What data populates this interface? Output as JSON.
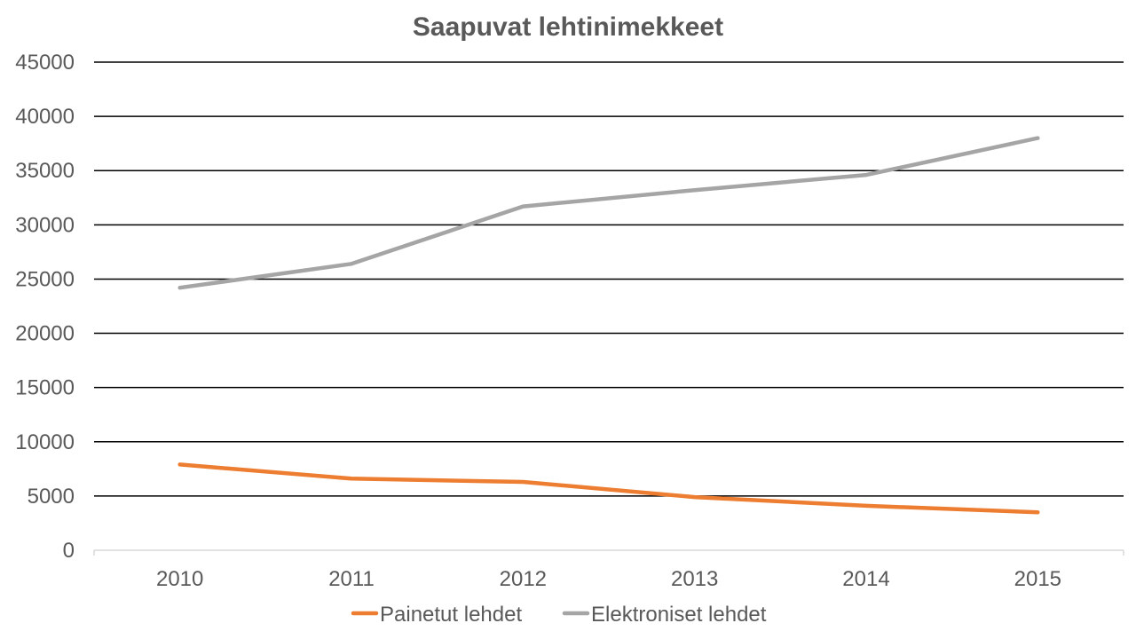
{
  "chart_data": {
    "type": "line",
    "title": "Saapuvat lehtinimekkeet",
    "xlabel": "",
    "ylabel": "",
    "categories": [
      "2010",
      "2011",
      "2012",
      "2013",
      "2014",
      "2015"
    ],
    "y_ticks": [
      "0",
      "5000",
      "10000",
      "15000",
      "20000",
      "25000",
      "30000",
      "35000",
      "40000",
      "45000"
    ],
    "ylim": [
      0,
      45000
    ],
    "grid": true,
    "legend_position": "bottom",
    "series": [
      {
        "name": "Painetut lehdet",
        "color": "#ED7D31",
        "values": [
          7900,
          6600,
          6300,
          4900,
          4100,
          3500
        ]
      },
      {
        "name": "Elektroniset lehdet",
        "color": "#A5A5A5",
        "values": [
          24200,
          26400,
          31700,
          33200,
          34600,
          38000
        ]
      }
    ]
  }
}
